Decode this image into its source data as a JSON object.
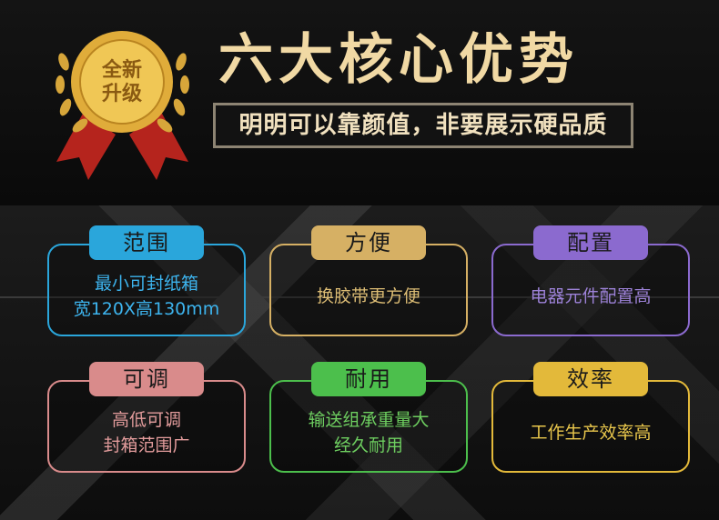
{
  "badge": {
    "line1": "全新",
    "line2": "升级"
  },
  "title": "六大核心优势",
  "subtitle": "明明可以靠颜值，非要展示硬品质",
  "features": [
    {
      "label": "范围",
      "lines": [
        "最小可封纸箱",
        "宽120X高130mm"
      ],
      "color": "#2aa6db",
      "text_color": "#3db4ee"
    },
    {
      "label": "方便",
      "lines": [
        "换胶带更方便"
      ],
      "color": "#d6b064",
      "text_color": "#dcbc74"
    },
    {
      "label": "配置",
      "lines": [
        "电器元件配置高"
      ],
      "color": "#8b6acf",
      "text_color": "#9d82d8"
    },
    {
      "label": "可调",
      "lines": [
        "高低可调",
        "封箱范围广"
      ],
      "color": "#d98b8b",
      "text_color": "#e39c9c"
    },
    {
      "label": "耐用",
      "lines": [
        "输送组承重量大",
        "经久耐用"
      ],
      "color": "#4cbf4c",
      "text_color": "#6ecf60"
    },
    {
      "label": "效率",
      "lines": [
        "工作生产效率高"
      ],
      "color": "#e3b93a",
      "text_color": "#e9c74c"
    }
  ]
}
